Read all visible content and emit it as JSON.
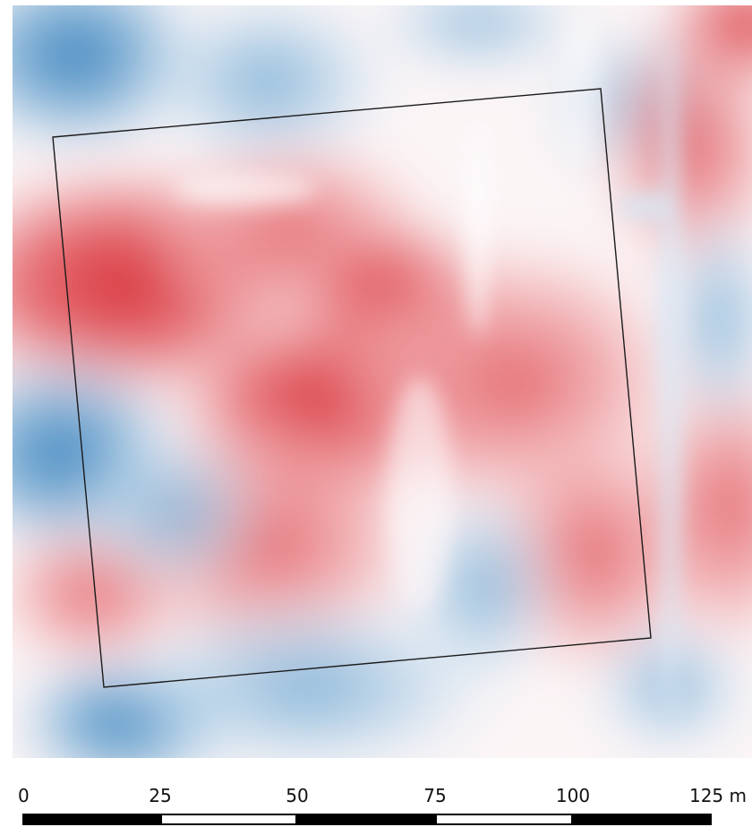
{
  "map": {
    "colors": {
      "high": "#d21f2f",
      "mid": "#f7f1f2",
      "low": "#2f7fbd",
      "outline": "#1b1b1b"
    },
    "overlay": "rotated-square-outline"
  },
  "scale_bar": {
    "unit": "m",
    "labels": [
      "0",
      "25",
      "50",
      "75",
      "100",
      "125 m"
    ],
    "segments": [
      "black",
      "white",
      "black",
      "white",
      "black"
    ]
  }
}
